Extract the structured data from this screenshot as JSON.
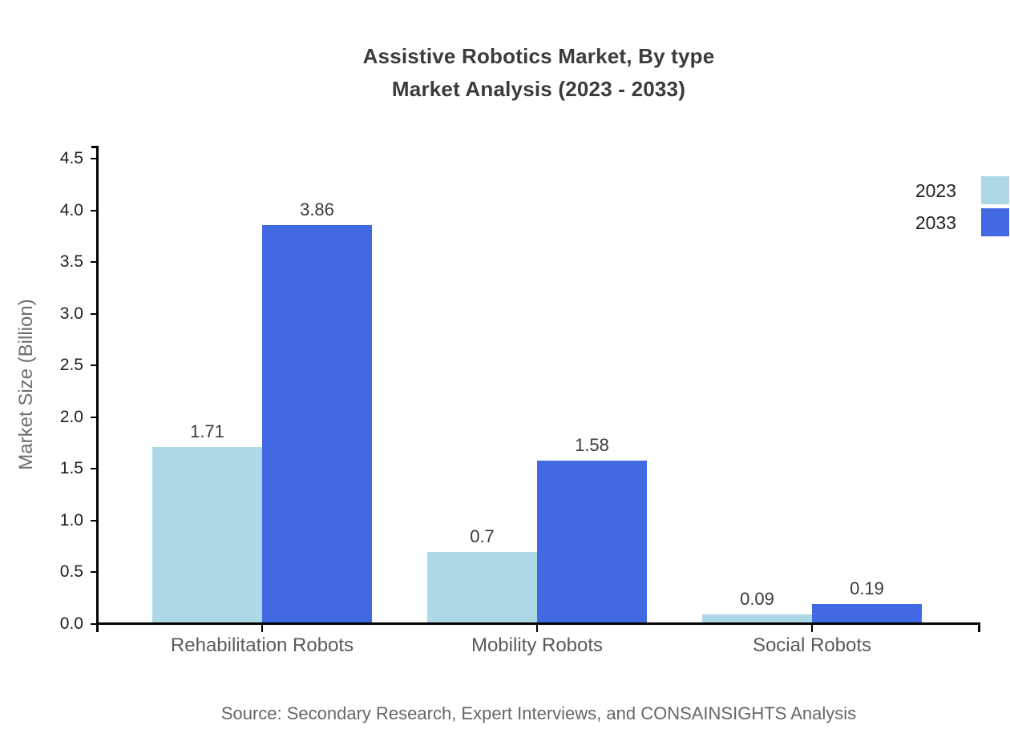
{
  "title": {
    "line1": "Assistive Robotics Market, By type",
    "line2": "Market Analysis (2023 - 2033)"
  },
  "source": "Source: Secondary Research, Expert Interviews, and CONSAINSIGHTS Analysis",
  "colors": {
    "series_2023": "#ADD8E6",
    "series_2033": "#4169E1",
    "axis": "#000000",
    "title_text": "#3b3b3b",
    "category_text": "#5a5a5a",
    "muted_text": "#6e6e6e"
  },
  "chart_data": {
    "type": "bar",
    "title": "Assistive Robotics Market, By type Market Analysis (2023 - 2033)",
    "categories": [
      "Rehabilitation Robots",
      "Mobility Robots",
      "Social Robots"
    ],
    "series": [
      {
        "name": "2023",
        "color": "#ADD8E6",
        "values": [
          1.71,
          0.7,
          0.09
        ]
      },
      {
        "name": "2033",
        "color": "#4169E1",
        "values": [
          3.86,
          1.58,
          0.19
        ]
      }
    ],
    "data_labels": [
      [
        "1.71",
        "0.7",
        "0.09"
      ],
      [
        "3.86",
        "1.58",
        "0.19"
      ]
    ],
    "xlabel": "",
    "ylabel": "Market Size (Billion)",
    "ylim": [
      0,
      4.5
    ],
    "ytick_step": 0.5,
    "yticks": [
      "0.0",
      "0.5",
      "1.0",
      "1.5",
      "2.0",
      "2.5",
      "3.0",
      "3.5",
      "4.0",
      "4.5"
    ],
    "grid": false,
    "legend_position": "top-right"
  }
}
